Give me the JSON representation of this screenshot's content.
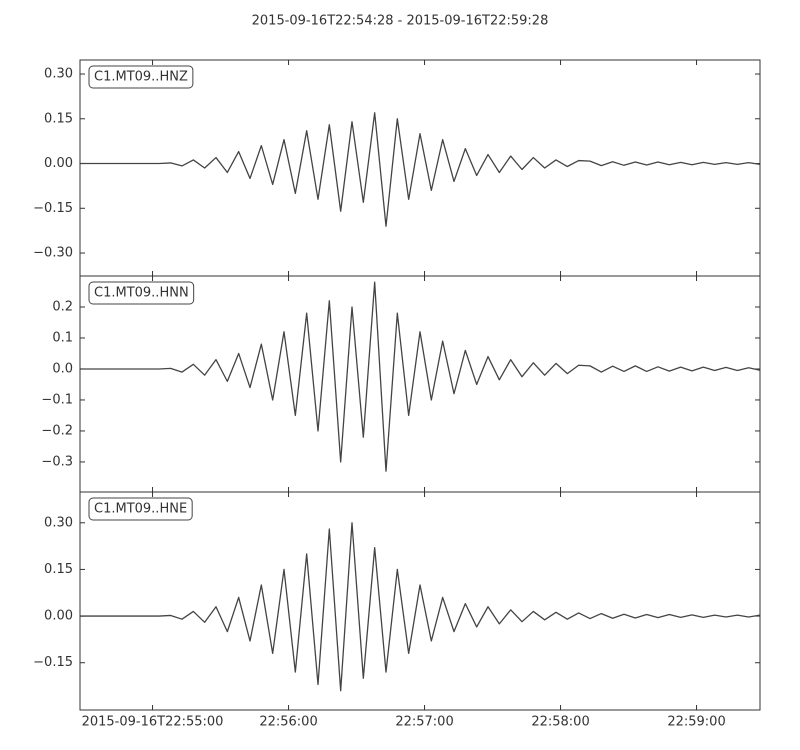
{
  "title": "2015-09-16T22:54:28  -  2015-09-16T22:59:28",
  "chart_data": [
    {
      "type": "line",
      "legend": "upper left",
      "x": [
        "2015-09-16T22:54:28",
        "2015-09-16T22:54:33",
        "2015-09-16T22:54:38",
        "2015-09-16T22:54:43",
        "2015-09-16T22:54:48",
        "2015-09-16T22:54:53",
        "2015-09-16T22:54:58",
        "2015-09-16T22:55:03",
        "2015-09-16T22:55:08",
        "2015-09-16T22:55:13",
        "2015-09-16T22:55:18",
        "2015-09-16T22:55:23",
        "2015-09-16T22:55:28",
        "2015-09-16T22:55:33",
        "2015-09-16T22:55:38",
        "2015-09-16T22:55:43",
        "2015-09-16T22:55:48",
        "2015-09-16T22:55:53",
        "2015-09-16T22:55:58",
        "2015-09-16T22:56:03",
        "2015-09-16T22:56:08",
        "2015-09-16T22:56:13",
        "2015-09-16T22:56:18",
        "2015-09-16T22:56:23",
        "2015-09-16T22:56:28",
        "2015-09-16T22:56:33",
        "2015-09-16T22:56:38",
        "2015-09-16T22:56:43",
        "2015-09-16T22:56:48",
        "2015-09-16T22:56:53",
        "2015-09-16T22:56:58",
        "2015-09-16T22:57:03",
        "2015-09-16T22:57:08",
        "2015-09-16T22:57:13",
        "2015-09-16T22:57:18",
        "2015-09-16T22:57:23",
        "2015-09-16T22:57:28",
        "2015-09-16T22:57:33",
        "2015-09-16T22:57:38",
        "2015-09-16T22:57:43",
        "2015-09-16T22:57:48",
        "2015-09-16T22:57:53",
        "2015-09-16T22:57:58",
        "2015-09-16T22:58:03",
        "2015-09-16T22:58:08",
        "2015-09-16T22:58:13",
        "2015-09-16T22:58:18",
        "2015-09-16T22:58:23",
        "2015-09-16T22:58:28",
        "2015-09-16T22:58:33",
        "2015-09-16T22:58:38",
        "2015-09-16T22:58:43",
        "2015-09-16T22:58:48",
        "2015-09-16T22:58:53",
        "2015-09-16T22:58:58",
        "2015-09-16T22:59:03",
        "2015-09-16T22:59:08",
        "2015-09-16T22:59:13",
        "2015-09-16T22:59:18",
        "2015-09-16T22:59:23",
        "2015-09-16T22:59:28"
      ],
      "xlim": [
        "2015-09-16T22:54:28",
        "2015-09-16T22:59:28"
      ],
      "ylim": [
        -0.377,
        0.347
      ],
      "yticks": [
        {
          "value": 0.3,
          "label": "0.30"
        },
        {
          "value": 0.15,
          "label": "0.15"
        },
        {
          "value": 0,
          "label": "0.00"
        },
        {
          "value": -0.15,
          "label": "−0.15"
        },
        {
          "value": -0.3,
          "label": "−0.30"
        }
      ],
      "series": [
        {
          "name": "C1.MT09..HNZ",
          "color": "#444444",
          "values": [
            0,
            0,
            0,
            0,
            0,
            0,
            0,
            0,
            0.002,
            -0.008,
            0.012,
            -0.015,
            0.02,
            -0.03,
            0.04,
            -0.05,
            0.06,
            -0.07,
            0.08,
            -0.1,
            0.11,
            -0.12,
            0.13,
            -0.16,
            0.14,
            -0.13,
            0.17,
            -0.21,
            0.15,
            -0.12,
            0.1,
            -0.09,
            0.08,
            -0.06,
            0.05,
            -0.04,
            0.03,
            -0.03,
            0.025,
            -0.02,
            0.02,
            -0.015,
            0.012,
            -0.01,
            0.01,
            0.008,
            -0.007,
            0.006,
            -0.006,
            0.005,
            -0.005,
            0.005,
            -0.004,
            0.004,
            -0.004,
            0.004,
            -0.003,
            0.003,
            -0.003,
            0.003,
            -0.003
          ]
        }
      ]
    },
    {
      "type": "line",
      "legend": "upper left",
      "x": [
        "2015-09-16T22:54:28",
        "2015-09-16T22:54:33",
        "2015-09-16T22:54:38",
        "2015-09-16T22:54:43",
        "2015-09-16T22:54:48",
        "2015-09-16T22:54:53",
        "2015-09-16T22:54:58",
        "2015-09-16T22:55:03",
        "2015-09-16T22:55:08",
        "2015-09-16T22:55:13",
        "2015-09-16T22:55:18",
        "2015-09-16T22:55:23",
        "2015-09-16T22:55:28",
        "2015-09-16T22:55:33",
        "2015-09-16T22:55:38",
        "2015-09-16T22:55:43",
        "2015-09-16T22:55:48",
        "2015-09-16T22:55:53",
        "2015-09-16T22:55:58",
        "2015-09-16T22:56:03",
        "2015-09-16T22:56:08",
        "2015-09-16T22:56:13",
        "2015-09-16T22:56:18",
        "2015-09-16T22:56:23",
        "2015-09-16T22:56:28",
        "2015-09-16T22:56:33",
        "2015-09-16T22:56:38",
        "2015-09-16T22:56:43",
        "2015-09-16T22:56:48",
        "2015-09-16T22:56:53",
        "2015-09-16T22:56:58",
        "2015-09-16T22:57:03",
        "2015-09-16T22:57:08",
        "2015-09-16T22:57:13",
        "2015-09-16T22:57:18",
        "2015-09-16T22:57:23",
        "2015-09-16T22:57:28",
        "2015-09-16T22:57:33",
        "2015-09-16T22:57:38",
        "2015-09-16T22:57:43",
        "2015-09-16T22:57:48",
        "2015-09-16T22:57:53",
        "2015-09-16T22:57:58",
        "2015-09-16T22:58:03",
        "2015-09-16T22:58:08",
        "2015-09-16T22:58:13",
        "2015-09-16T22:58:18",
        "2015-09-16T22:58:23",
        "2015-09-16T22:58:28",
        "2015-09-16T22:58:33",
        "2015-09-16T22:58:38",
        "2015-09-16T22:58:43",
        "2015-09-16T22:58:48",
        "2015-09-16T22:58:53",
        "2015-09-16T22:58:58",
        "2015-09-16T22:59:03",
        "2015-09-16T22:59:08",
        "2015-09-16T22:59:13",
        "2015-09-16T22:59:18",
        "2015-09-16T22:59:23",
        "2015-09-16T22:59:28"
      ],
      "xlim": [
        "2015-09-16T22:54:28",
        "2015-09-16T22:59:28"
      ],
      "ylim": [
        -0.397,
        0.3
      ],
      "yticks": [
        0.2,
        0.1,
        {
          "value": 0,
          "label": "0.0"
        },
        {
          "value": -0.1,
          "label": "−0.1"
        },
        {
          "value": -0.2,
          "label": "−0.2"
        },
        {
          "value": -0.3,
          "label": "−0.3"
        }
      ],
      "series": [
        {
          "name": "C1.MT09..HNN",
          "color": "#444444",
          "values": [
            0,
            0,
            0,
            0,
            0,
            0,
            0,
            0,
            0.002,
            -0.01,
            0.015,
            -0.02,
            0.03,
            -0.04,
            0.05,
            -0.06,
            0.08,
            -0.1,
            0.12,
            -0.15,
            0.18,
            -0.2,
            0.22,
            -0.3,
            0.2,
            -0.22,
            0.28,
            -0.33,
            0.18,
            -0.15,
            0.12,
            -0.1,
            0.09,
            -0.08,
            0.06,
            -0.05,
            0.04,
            -0.035,
            0.03,
            -0.025,
            0.02,
            -0.02,
            0.018,
            -0.015,
            0.012,
            0.01,
            -0.01,
            0.009,
            -0.008,
            0.01,
            -0.008,
            0.007,
            -0.007,
            0.006,
            -0.006,
            0.006,
            -0.005,
            0.005,
            -0.005,
            0.004,
            -0.004
          ]
        }
      ]
    },
    {
      "type": "line",
      "legend": "upper left",
      "x": [
        "2015-09-16T22:54:28",
        "2015-09-16T22:54:33",
        "2015-09-16T22:54:38",
        "2015-09-16T22:54:43",
        "2015-09-16T22:54:48",
        "2015-09-16T22:54:53",
        "2015-09-16T22:54:58",
        "2015-09-16T22:55:03",
        "2015-09-16T22:55:08",
        "2015-09-16T22:55:13",
        "2015-09-16T22:55:18",
        "2015-09-16T22:55:23",
        "2015-09-16T22:55:28",
        "2015-09-16T22:55:33",
        "2015-09-16T22:55:38",
        "2015-09-16T22:55:43",
        "2015-09-16T22:55:48",
        "2015-09-16T22:55:53",
        "2015-09-16T22:55:58",
        "2015-09-16T22:56:03",
        "2015-09-16T22:56:08",
        "2015-09-16T22:56:13",
        "2015-09-16T22:56:18",
        "2015-09-16T22:56:23",
        "2015-09-16T22:56:28",
        "2015-09-16T22:56:33",
        "2015-09-16T22:56:38",
        "2015-09-16T22:56:43",
        "2015-09-16T22:56:48",
        "2015-09-16T22:56:53",
        "2015-09-16T22:56:58",
        "2015-09-16T22:57:03",
        "2015-09-16T22:57:08",
        "2015-09-16T22:57:13",
        "2015-09-16T22:57:18",
        "2015-09-16T22:57:23",
        "2015-09-16T22:57:28",
        "2015-09-16T22:57:33",
        "2015-09-16T22:57:38",
        "2015-09-16T22:57:43",
        "2015-09-16T22:57:48",
        "2015-09-16T22:57:53",
        "2015-09-16T22:57:58",
        "2015-09-16T22:58:03",
        "2015-09-16T22:58:08",
        "2015-09-16T22:58:13",
        "2015-09-16T22:58:18",
        "2015-09-16T22:58:23",
        "2015-09-16T22:58:28",
        "2015-09-16T22:58:33",
        "2015-09-16T22:58:38",
        "2015-09-16T22:58:43",
        "2015-09-16T22:58:48",
        "2015-09-16T22:58:53",
        "2015-09-16T22:58:58",
        "2015-09-16T22:59:03",
        "2015-09-16T22:59:08",
        "2015-09-16T22:59:13",
        "2015-09-16T22:59:18",
        "2015-09-16T22:59:23",
        "2015-09-16T22:59:28"
      ],
      "xlim": [
        "2015-09-16T22:54:28",
        "2015-09-16T22:59:28"
      ],
      "xticks": [
        "2015-09-16T22:55:00",
        {
          "value": "2015-09-16T22:56:00",
          "label": "22:56:00"
        },
        {
          "value": "2015-09-16T22:57:00",
          "label": "22:57:00"
        },
        {
          "value": "2015-09-16T22:58:00",
          "label": "22:58:00"
        },
        {
          "value": "2015-09-16T22:59:00",
          "label": "22:59:00"
        }
      ],
      "ylim": [
        -0.302,
        0.399
      ],
      "yticks": [
        {
          "value": 0.3,
          "label": "0.30"
        },
        {
          "value": 0.15,
          "label": "0.15"
        },
        {
          "value": 0,
          "label": "0.00"
        },
        {
          "value": -0.15,
          "label": "−0.15"
        }
      ],
      "series": [
        {
          "name": "C1.MT09..HNE",
          "color": "#444444",
          "values": [
            0,
            0,
            0,
            0,
            0,
            0,
            0,
            0,
            0.002,
            -0.01,
            0.015,
            -0.02,
            0.03,
            -0.05,
            0.06,
            -0.08,
            0.1,
            -0.12,
            0.15,
            -0.18,
            0.2,
            -0.22,
            0.28,
            -0.24,
            0.3,
            -0.2,
            0.22,
            -0.18,
            0.15,
            -0.12,
            0.1,
            -0.08,
            0.06,
            -0.05,
            0.04,
            -0.035,
            0.03,
            -0.025,
            0.02,
            -0.018,
            0.015,
            -0.012,
            0.012,
            -0.01,
            0.01,
            -0.008,
            0.008,
            -0.007,
            0.006,
            -0.006,
            0.005,
            -0.005,
            0.005,
            -0.004,
            0.004,
            -0.004,
            0.003,
            -0.003,
            0.003,
            -0.003,
            0.003
          ]
        }
      ]
    }
  ]
}
